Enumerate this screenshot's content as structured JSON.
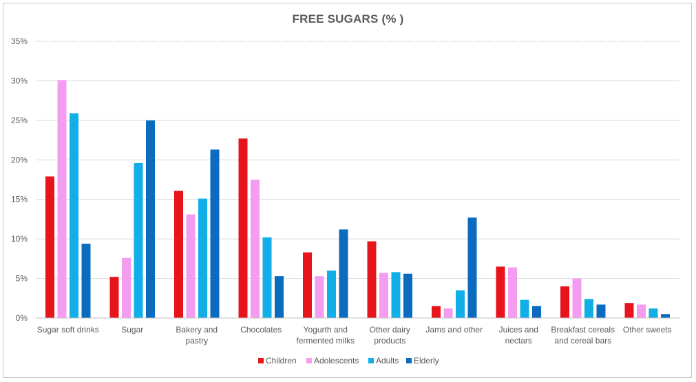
{
  "chart_data": {
    "type": "bar",
    "title": "FREE SUGARS (% )",
    "xlabel": "",
    "ylabel": "",
    "ylim": [
      0,
      35
    ],
    "y_tick_labels": [
      "0%",
      "5%",
      "10%",
      "15%",
      "20%",
      "25%",
      "30%",
      "35%"
    ],
    "grid": true,
    "legend_position": "bottom",
    "categories": [
      [
        "Sugar soft drinks"
      ],
      [
        "Sugar"
      ],
      [
        "Bakery and",
        "pastry"
      ],
      [
        "Chocolates"
      ],
      [
        "Yogurth and",
        "fermented milks"
      ],
      [
        "Other dairy",
        "products"
      ],
      [
        "Jams and other"
      ],
      [
        "Juices and",
        "nectars"
      ],
      [
        "Breakfast cereals",
        "and cereal bars"
      ],
      [
        "Other sweets"
      ]
    ],
    "series": [
      {
        "name": "Children",
        "color": "#e8141c",
        "values": [
          17.9,
          5.2,
          16.1,
          22.7,
          8.3,
          9.7,
          1.5,
          6.5,
          4.0,
          1.9
        ]
      },
      {
        "name": "Adolescents",
        "color": "#f49cf0",
        "values": [
          30.1,
          7.6,
          13.1,
          17.5,
          5.3,
          5.7,
          1.2,
          6.4,
          5.0,
          1.7
        ]
      },
      {
        "name": "Adults",
        "color": "#12aee8",
        "values": [
          25.9,
          19.6,
          15.1,
          10.2,
          6.0,
          5.8,
          3.5,
          2.3,
          2.4,
          1.2
        ]
      },
      {
        "name": "Elderly",
        "color": "#0b6bbf",
        "values": [
          9.4,
          25.0,
          21.3,
          5.3,
          11.2,
          5.6,
          12.7,
          1.5,
          1.7,
          0.5
        ]
      }
    ]
  }
}
